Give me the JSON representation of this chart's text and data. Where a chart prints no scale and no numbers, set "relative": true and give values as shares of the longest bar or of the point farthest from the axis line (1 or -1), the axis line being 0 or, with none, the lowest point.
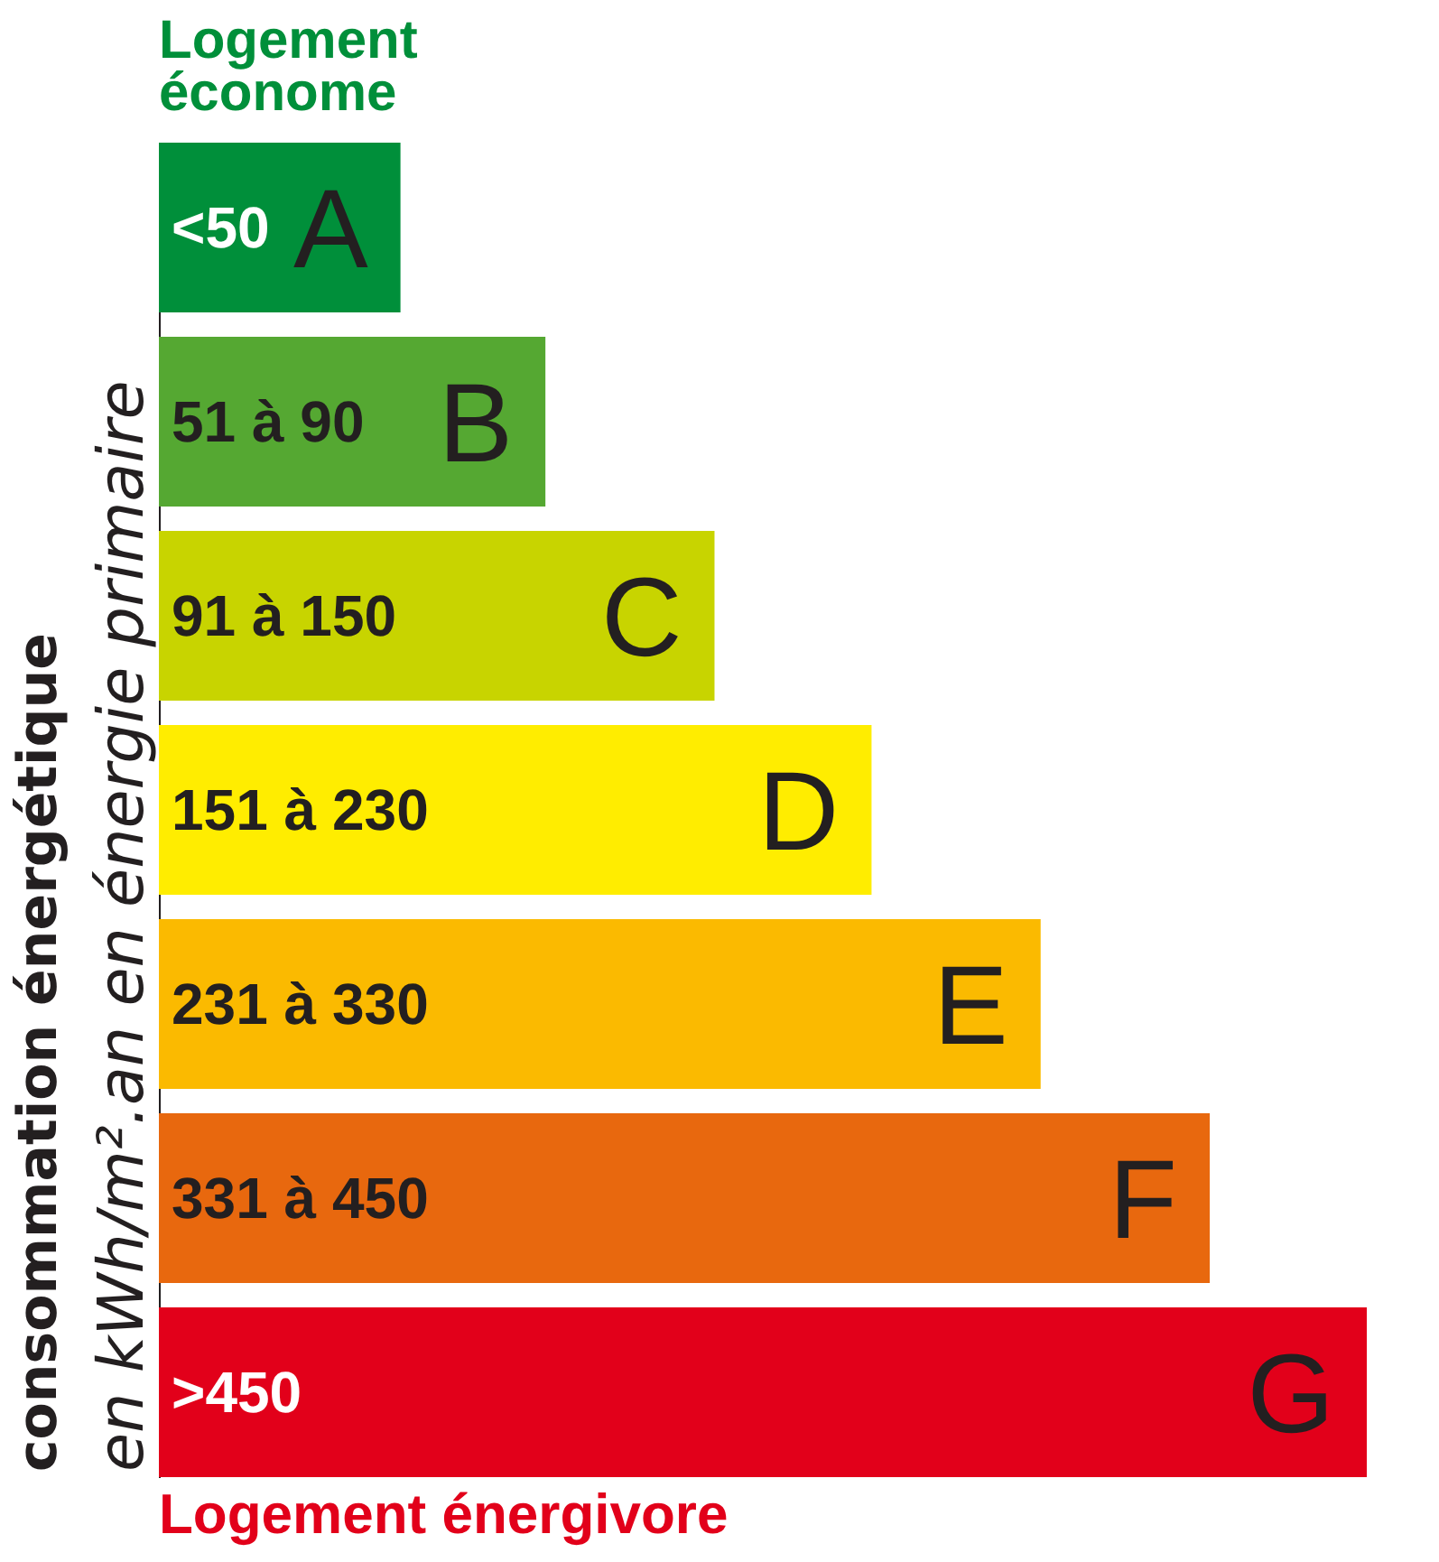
{
  "chart_data": {
    "type": "bar",
    "orientation": "horizontal",
    "relative": true,
    "title": "Logement économe",
    "ylabel": "consommation énergétique\nen kWh/m².an en énergie primaire",
    "categories": [
      "A",
      "B",
      "C",
      "D",
      "E",
      "F",
      "G"
    ],
    "values": [
      0.2,
      0.32,
      0.46,
      0.59,
      0.73,
      0.87,
      1
    ],
    "colors": [
      "#008f3a",
      "#55a832",
      "#c8d400",
      "#ffed00",
      "#fbba00",
      "#e8680e",
      "#e2001a"
    ],
    "annotations": [
      "<50",
      "51 à 90",
      "91 à 150",
      "151 à 230",
      "231 à 330",
      "331 à 450",
      ">450",
      "Logement énergivore"
    ]
  }
}
